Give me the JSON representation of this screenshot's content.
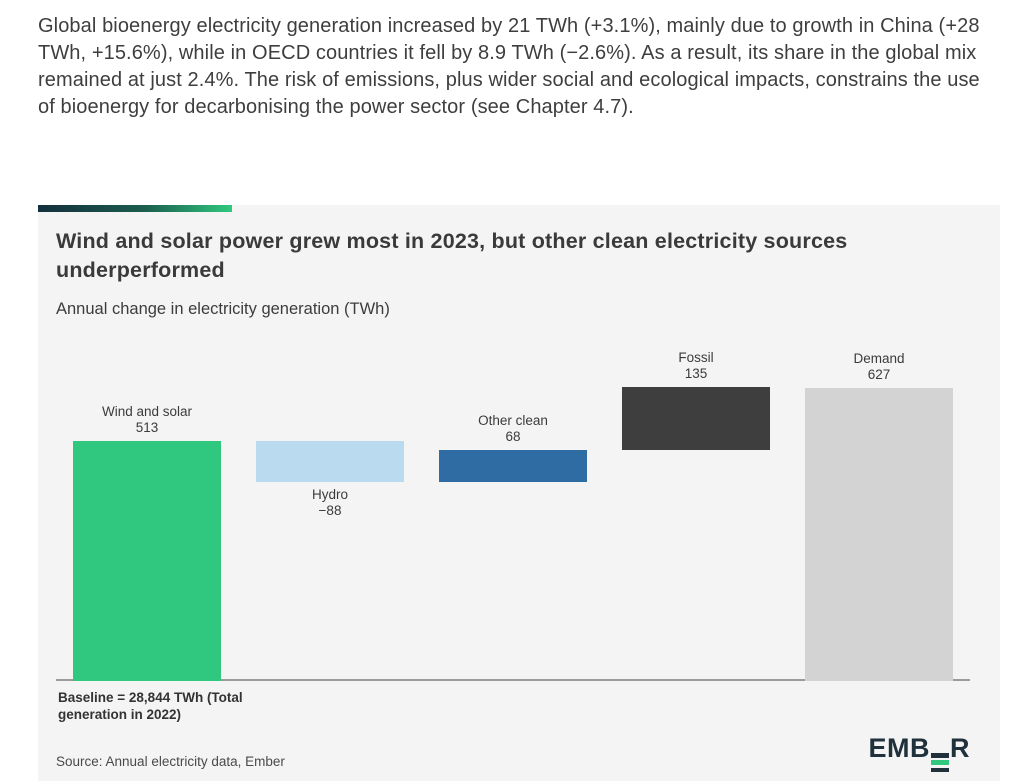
{
  "page": {
    "intro_paragraph": "Global bioenergy electricity generation increased by 21 TWh (+3.1%), mainly due to growth in China (+28 TWh, +15.6%), while in OECD countries it fell by 8.9 TWh (−2.6%). As a result, its share in the global mix remained at just 2.4%. The risk of emissions, plus wider social and ecological impacts, constrains the use of bioenergy for decarbonising the power sector (see Chapter 4.7)."
  },
  "chart_data": {
    "type": "bar",
    "subtype": "waterfall",
    "title": "Wind and solar power grew most in 2023, but other clean electricity sources underperformed",
    "subtitle": "Annual change in electricity generation (TWh)",
    "unit": "TWh",
    "ylim": [
      0,
      660
    ],
    "axes_hidden": true,
    "baseline_note": "Baseline = 28,844 TWh (Total generation in 2022)",
    "source": "Source: Annual electricity data, Ember",
    "bars": [
      {
        "label": "Wind and solar",
        "value": 513,
        "display_value": "513",
        "start": 0,
        "end": 513,
        "color": "#30c87e",
        "label_position": "above"
      },
      {
        "label": "Hydro",
        "value": -88,
        "display_value": "−88",
        "start": 513,
        "end": 425,
        "color": "#badaf0",
        "label_position": "below"
      },
      {
        "label": "Other clean",
        "value": 68,
        "display_value": "68",
        "start": 425,
        "end": 493,
        "color": "#2e6ca3",
        "label_position": "above"
      },
      {
        "label": "Fossil",
        "value": 135,
        "display_value": "135",
        "start": 493,
        "end": 628,
        "color": "#3e3e3e",
        "label_position": "above"
      },
      {
        "label": "Demand",
        "value": 627,
        "display_value": "627",
        "start": 0,
        "end": 627,
        "color": "#d3d3d3",
        "label_position": "above"
      }
    ]
  },
  "card": {
    "logo": {
      "prefix": "EMB",
      "suffix": "R",
      "glyph": "three-bar-E",
      "accent_color": "#30c87e",
      "text_color": "#20313b"
    }
  }
}
